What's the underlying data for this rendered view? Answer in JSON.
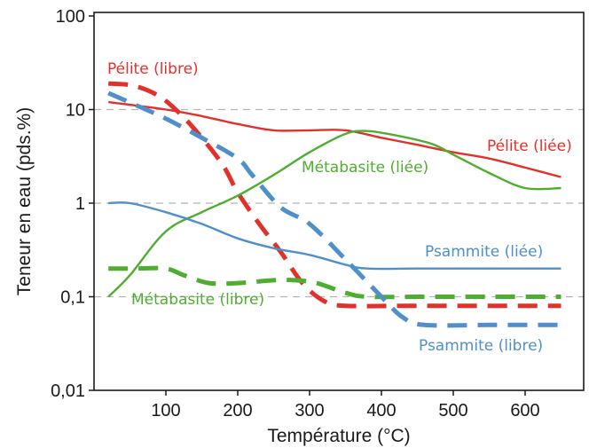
{
  "chart_data": {
    "type": "line",
    "title": "",
    "xlabel": "Température (°C)",
    "ylabel": "Teneur en eau (pds.%)",
    "xlim": [
      10,
      660
    ],
    "ylim": [
      0.01,
      100
    ],
    "yscale": "log",
    "x_ticks": [
      100,
      200,
      300,
      400,
      500,
      600
    ],
    "x_tick_labels": [
      "100",
      "200",
      "300",
      "400",
      "500",
      "600"
    ],
    "y_ticks": [
      0.01,
      0.1,
      1,
      10,
      100
    ],
    "y_tick_labels": [
      "0,01",
      "0,1",
      "1",
      "10",
      "100"
    ],
    "grid": "horizontal dashed at 0,1 / 1 / 10",
    "legend": "none (inline labels)",
    "series": [
      {
        "name": "Pélite (libre)",
        "color": "#e2312b",
        "style": "dashed",
        "x": [
          20,
          55,
          90,
          120,
          150,
          180,
          200,
          230,
          260,
          290,
          320,
          350,
          450,
          650
        ],
        "y": [
          19,
          18,
          14,
          9,
          5,
          2.5,
          1.3,
          0.6,
          0.3,
          0.14,
          0.09,
          0.08,
          0.08,
          0.08
        ]
      },
      {
        "name": "Pélite (liée)",
        "color": "#e2312b",
        "style": "solid",
        "x": [
          20,
          100,
          150,
          200,
          250,
          300,
          350,
          400,
          450,
          500,
          550,
          600,
          650
        ],
        "y": [
          12,
          10,
          8.5,
          7,
          6,
          6,
          6,
          5,
          4.2,
          3.5,
          3,
          2.4,
          1.9
        ]
      },
      {
        "name": "Métabasite (liée)",
        "color": "#4fae32",
        "style": "solid",
        "x": [
          20,
          50,
          100,
          150,
          200,
          250,
          300,
          350,
          380,
          420,
          470,
          500,
          550,
          600,
          650
        ],
        "y": [
          0.1,
          0.17,
          0.5,
          0.8,
          1.2,
          2,
          3.5,
          5.5,
          5.9,
          5.3,
          4.3,
          3.3,
          2.1,
          1.45,
          1.45
        ]
      },
      {
        "name": "Métabasite (libre)",
        "color": "#4fae32",
        "style": "dashed",
        "x": [
          20,
          60,
          100,
          125,
          160,
          200,
          250,
          280,
          310,
          350,
          380,
          450,
          550,
          650
        ],
        "y": [
          0.2,
          0.2,
          0.2,
          0.17,
          0.14,
          0.14,
          0.15,
          0.15,
          0.14,
          0.11,
          0.1,
          0.1,
          0.1,
          0.1
        ]
      },
      {
        "name": "Psammite (liée)",
        "color": "#4f8fcb",
        "style": "solid",
        "x": [
          20,
          50,
          100,
          150,
          200,
          250,
          300,
          350,
          380,
          450,
          550,
          650
        ],
        "y": [
          1,
          1,
          0.8,
          0.6,
          0.42,
          0.33,
          0.28,
          0.22,
          0.2,
          0.2,
          0.2,
          0.2
        ]
      },
      {
        "name": "Psammite (libre)",
        "color": "#4f8fcb",
        "style": "dashed",
        "x": [
          20,
          60,
          100,
          150,
          200,
          220,
          260,
          300,
          350,
          400,
          430,
          460,
          550,
          650
        ],
        "y": [
          15,
          11,
          8,
          5,
          3,
          2,
          0.9,
          0.6,
          0.25,
          0.1,
          0.06,
          0.05,
          0.05,
          0.05
        ]
      }
    ]
  }
}
